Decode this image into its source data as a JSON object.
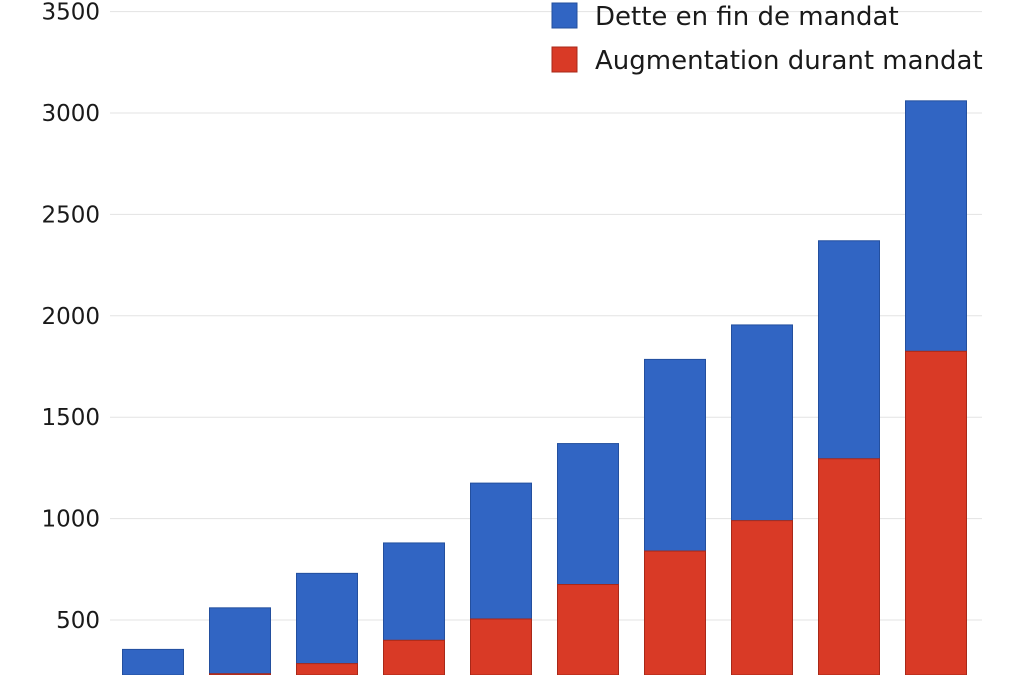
{
  "chart_data": {
    "type": "bar",
    "stacked": false,
    "overlapping": true,
    "title": "",
    "xlabel": "",
    "ylabel": "",
    "categories": [
      "",
      "",
      "",
      "",
      "",
      "",
      "",
      "",
      "",
      ""
    ],
    "ylim": [
      220,
      3500
    ],
    "yticks": [
      500,
      1000,
      1500,
      2000,
      2500,
      3000,
      3500
    ],
    "grid": true,
    "legend_position": "top-right",
    "series": [
      {
        "name": "Dette en fin de mandat",
        "color": "#3165c3",
        "values": [
          355,
          560,
          730,
          880,
          1175,
          1370,
          1785,
          1955,
          2370,
          3060
        ]
      },
      {
        "name": "Augmentation durant mandat",
        "color": "#d93a26",
        "values": [
          0,
          235,
          285,
          400,
          505,
          675,
          840,
          990,
          1295,
          1825
        ]
      }
    ]
  }
}
